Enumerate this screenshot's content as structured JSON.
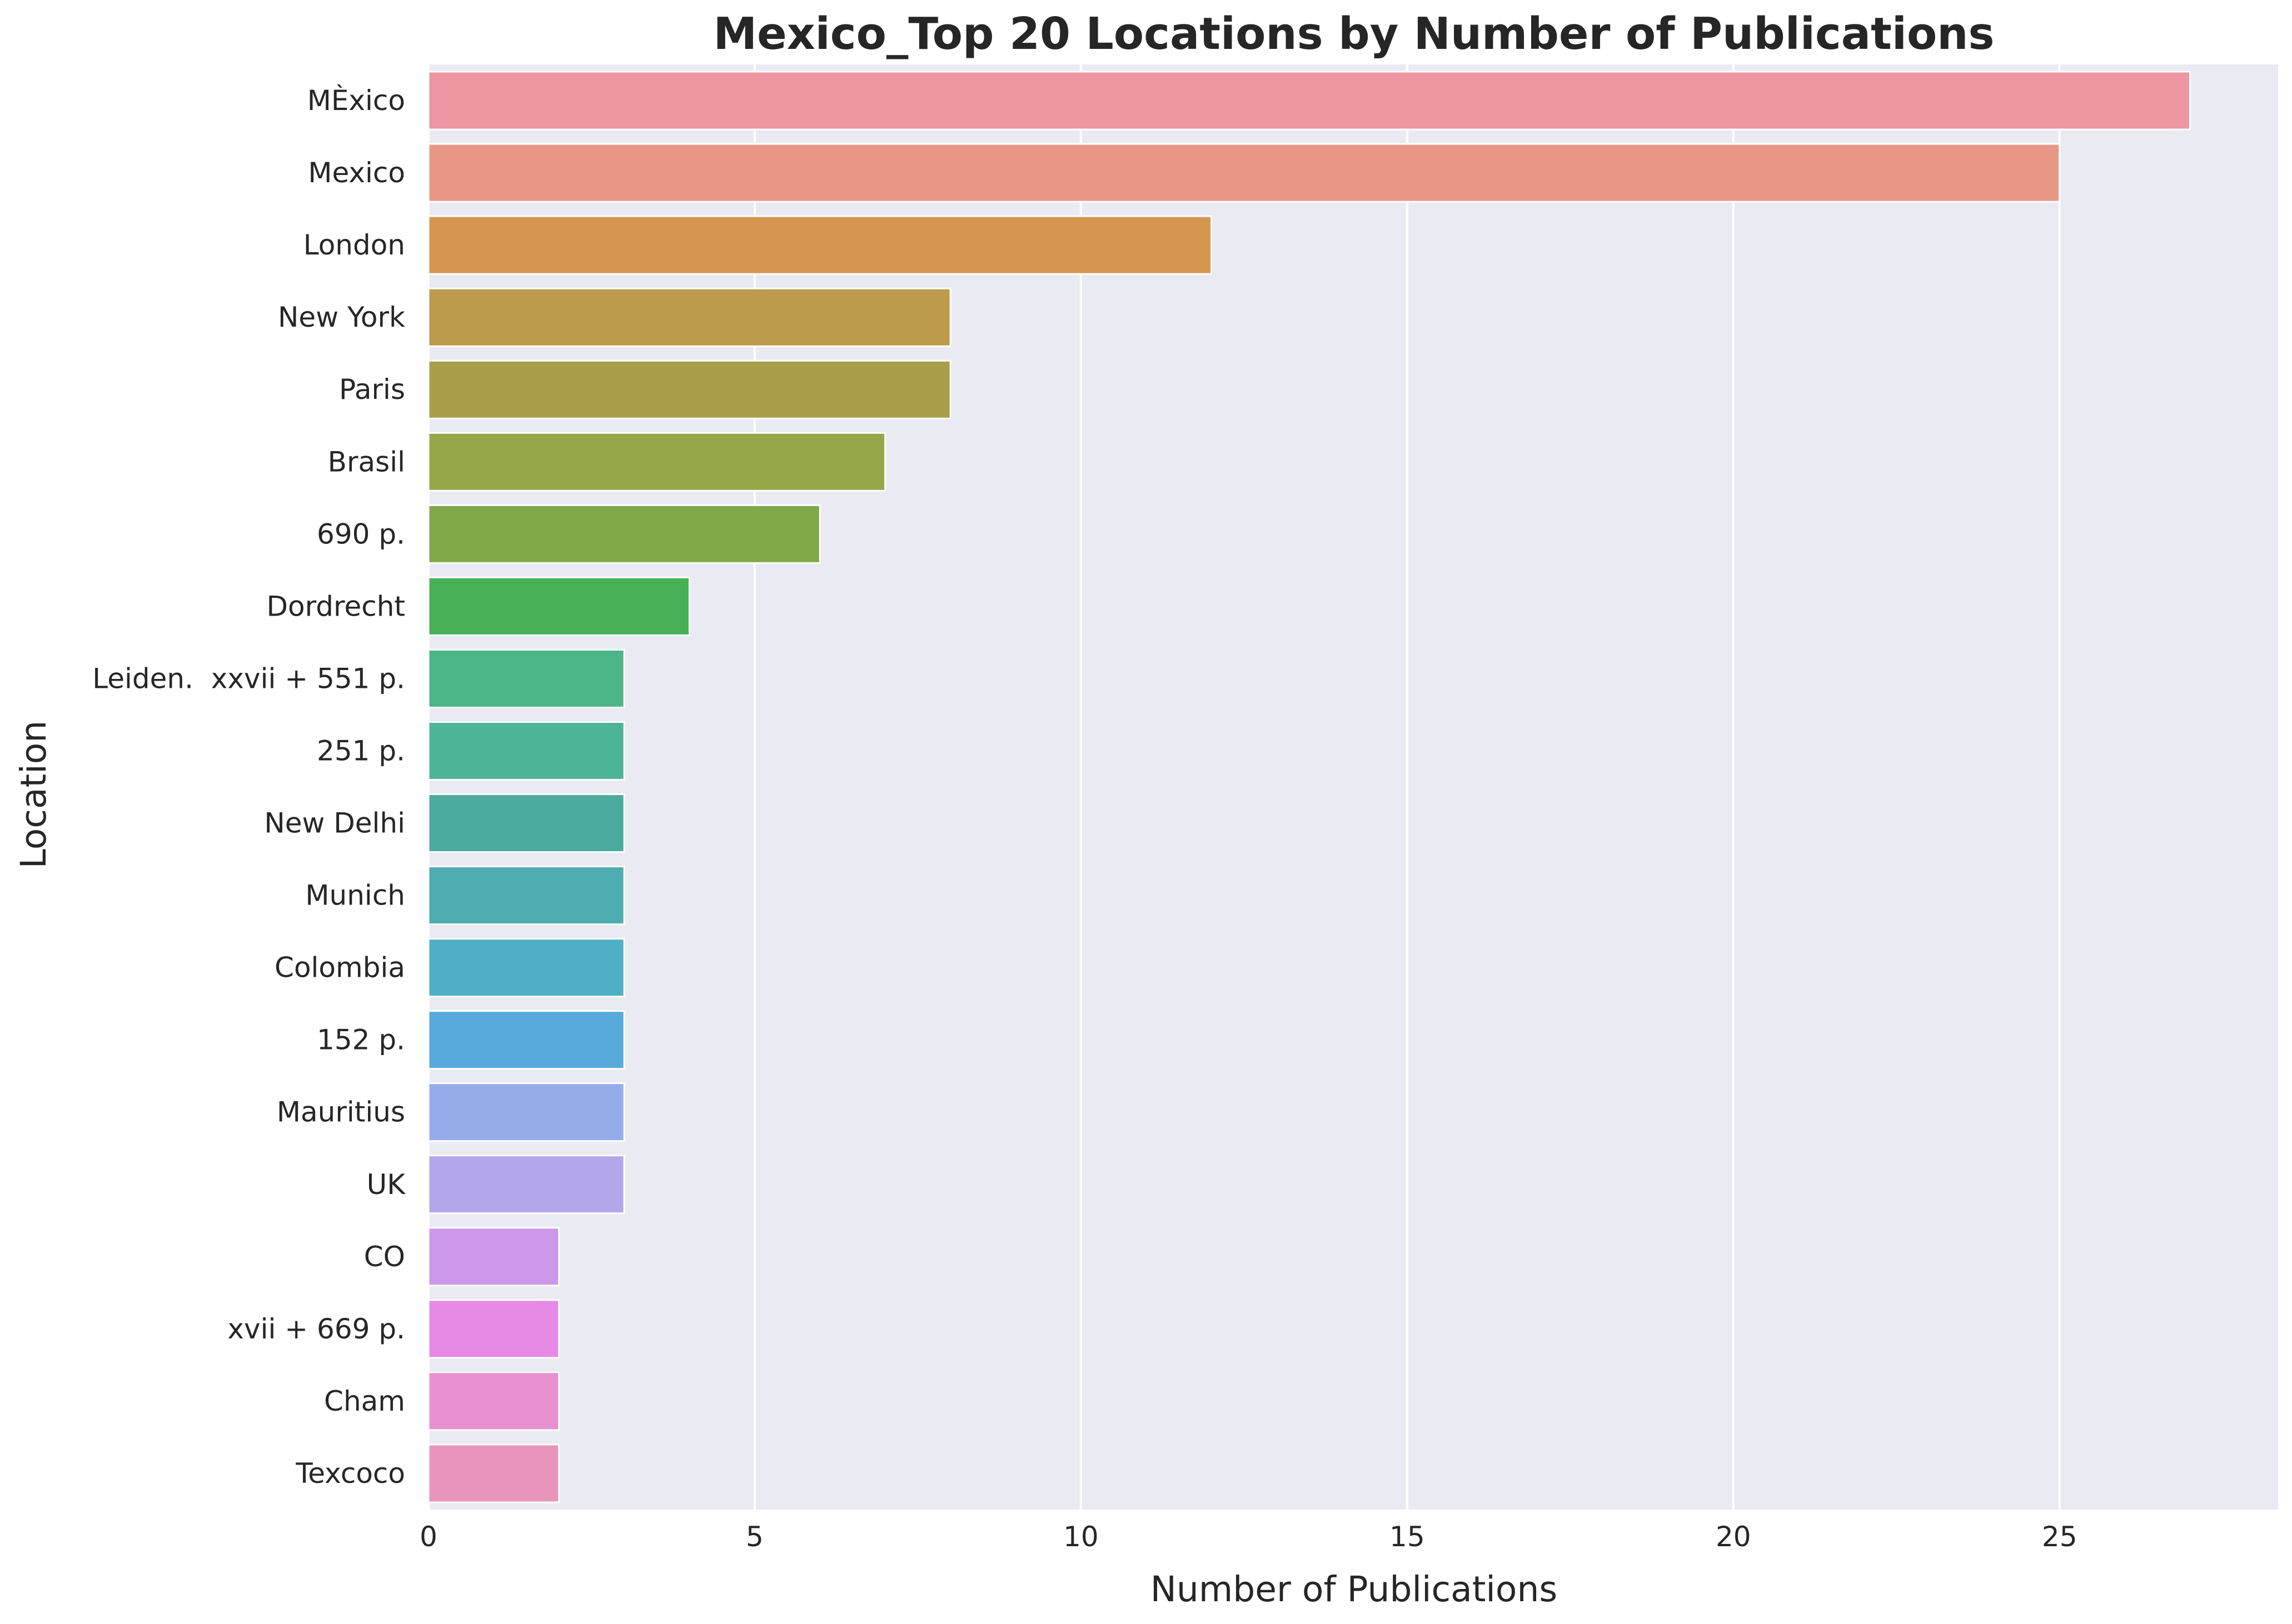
{
  "chart_data": {
    "type": "bar",
    "orientation": "horizontal",
    "title": "Mexico_Top 20 Locations by Number of Publications",
    "xlabel": "Number of Publications",
    "ylabel": "Location",
    "xlim": [
      0,
      28.35
    ],
    "xticks": [
      0,
      5,
      10,
      15,
      20,
      25
    ],
    "grid": true,
    "categories": [
      "MÈxico",
      "Mexico",
      "London",
      "New York",
      "Paris",
      "Brasil",
      "690 p.",
      "Dordrecht",
      "Leiden.  xxvii + 551 p.",
      "251 p.",
      "New Delhi",
      "Munich",
      "Colombia",
      "152 p.",
      "Mauritius",
      "UK",
      "CO",
      "xvii + 669 p.",
      "Cham",
      "Texcoco"
    ],
    "values": [
      27,
      25,
      12,
      8,
      8,
      7,
      6,
      4,
      3,
      3,
      3,
      3,
      3,
      3,
      3,
      3,
      2,
      2,
      2,
      2
    ],
    "colors": [
      "#eb96a1",
      "#e89785",
      "#d5974f",
      "#bd9a4c",
      "#a99f4b",
      "#96a74a",
      "#80a948",
      "#47b155",
      "#4cb587",
      "#4cb497",
      "#4cab9f",
      "#4eadb0",
      "#4fb0c5",
      "#56abdb",
      "#96acea",
      "#b5a6eb",
      "#cd98ea",
      "#e68be5",
      "#e891d0",
      "#e995bb"
    ],
    "background": "#eaeaf2"
  }
}
